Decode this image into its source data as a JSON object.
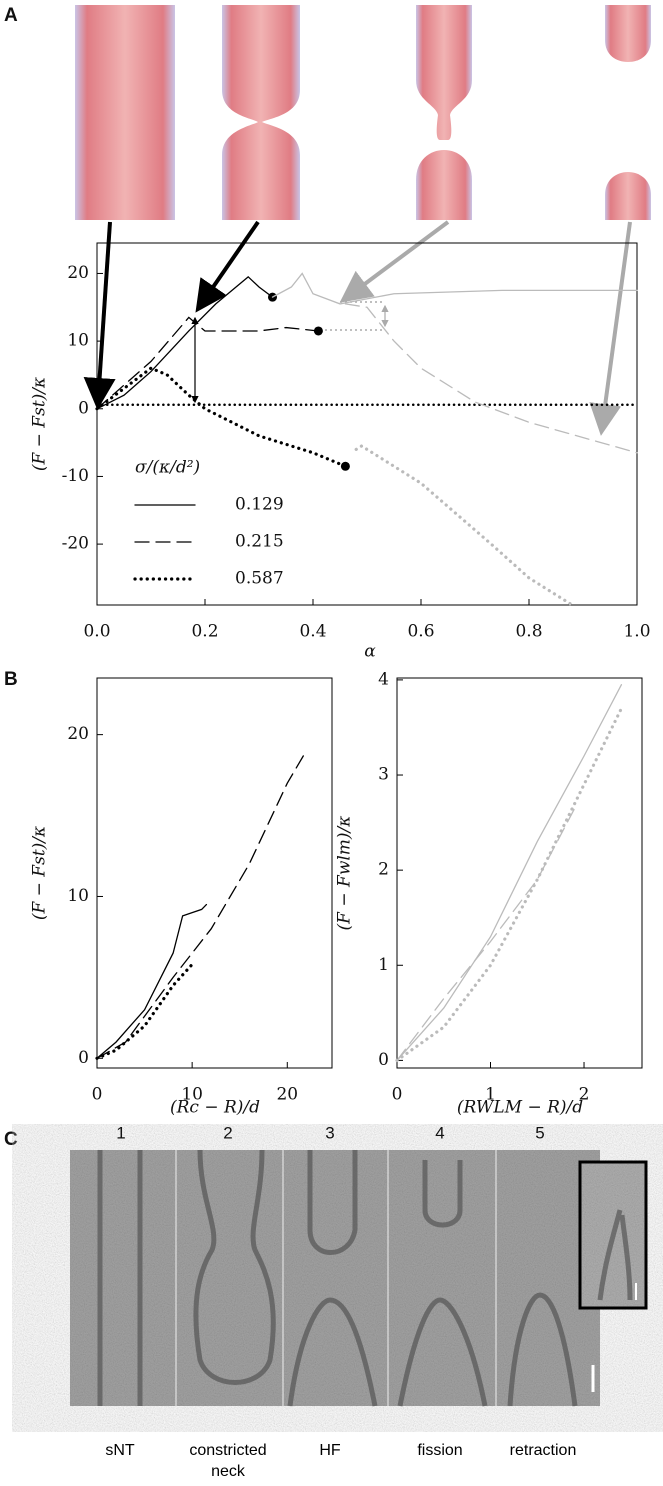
{
  "panels": {
    "a": "A",
    "b": "B",
    "c": "C"
  },
  "panel_c": {
    "numbers": [
      "1",
      "2",
      "3",
      "4",
      "5"
    ],
    "captions": [
      "sNT",
      "constricted neck",
      "HF",
      "fission",
      "retraction"
    ]
  },
  "chart_data": [
    {
      "type": "line",
      "xlabel": "α",
      "ylabel": "(F − Fst)/κ",
      "legend_title": "σ/(κ/d²)",
      "legend": "lower left",
      "xlim": [
        0,
        1
      ],
      "ylim": [
        -29,
        24.5
      ],
      "xticks": [
        {
          "value": 0,
          "label": "0.0"
        },
        0.2,
        0.4,
        0.6,
        0.8,
        {
          "value": 1,
          "label": "1.0"
        }
      ],
      "yticks": [
        -20,
        -10,
        0,
        10,
        20
      ],
      "reference_line": 0.6,
      "series": [
        {
          "name": "0.129",
          "color": "#000000",
          "style": "solid",
          "end_marker": true,
          "x": [
            0,
            0.05,
            0.1,
            0.17,
            0.22,
            0.28,
            0.3,
            0.325
          ],
          "values": [
            0,
            2,
            5.5,
            11.5,
            15.5,
            19.5,
            18,
            16.5
          ]
        },
        {
          "name": "0.215",
          "color": "#000000",
          "style": "dashed",
          "end_marker": true,
          "x": [
            0,
            0.05,
            0.1,
            0.17,
            0.2,
            0.25,
            0.3,
            0.35,
            0.41
          ],
          "values": [
            0,
            3.5,
            7,
            13.5,
            11.5,
            11.5,
            11.5,
            12,
            11.5
          ]
        },
        {
          "name": "0.587",
          "color": "#000000",
          "style": "dotted",
          "end_marker": true,
          "x": [
            0,
            0.05,
            0.1,
            0.13,
            0.17,
            0.2,
            0.3,
            0.4,
            0.46
          ],
          "values": [
            0,
            3,
            6,
            5,
            2,
            0,
            -4,
            -6.5,
            -8.5
          ]
        },
        {
          "color": "#bbbbbb",
          "style": "solid",
          "x": [
            0.325,
            0.36,
            0.38,
            0.4,
            0.45,
            0.55,
            0.75,
            1
          ],
          "values": [
            16.5,
            18,
            20,
            17,
            15.5,
            17,
            17.5,
            17.5
          ]
        },
        {
          "color": "#bbbbbb",
          "style": "dashed",
          "x": [
            0.46,
            0.5,
            0.55,
            0.6,
            0.7,
            0.8,
            1
          ],
          "values": [
            15.5,
            15,
            10,
            6,
            1,
            -2,
            -6.5
          ]
        },
        {
          "color": "#bbbbbb",
          "style": "dotted",
          "x": [
            0.48,
            0.49,
            0.6,
            0.73,
            0.8,
            0.88
          ],
          "values": [
            -6,
            -5.5,
            -11,
            -20,
            -25,
            -29
          ]
        }
      ]
    },
    {
      "type": "line",
      "xlabel": "(Rc − R)/d",
      "ylabel": "(F − Fst)/κ",
      "xlim": [
        0,
        24.7
      ],
      "ylim": [
        -0.6,
        23.5
      ],
      "xticks": [
        0,
        10,
        20
      ],
      "yticks": [
        0,
        10,
        20
      ],
      "series": [
        {
          "color": "#000000",
          "style": "solid",
          "x": [
            0,
            2,
            5,
            8,
            9,
            10,
            11,
            11.5
          ],
          "values": [
            0,
            1,
            3,
            6.5,
            8.8,
            9,
            9.2,
            9.5
          ]
        },
        {
          "color": "#000000",
          "style": "dashed",
          "x": [
            0,
            3,
            8,
            12,
            16,
            20,
            22
          ],
          "values": [
            0,
            1,
            5,
            8,
            12,
            17,
            19
          ]
        },
        {
          "color": "#000000",
          "style": "dotted",
          "x": [
            0,
            2,
            5,
            8,
            10
          ],
          "values": [
            0,
            0.5,
            2,
            4.5,
            5.8
          ]
        }
      ]
    },
    {
      "type": "line",
      "xlabel": "(RWLM − R)/d",
      "ylabel": "(F − Fwlm)/κ",
      "xlim": [
        0,
        2.62
      ],
      "ylim": [
        -0.08,
        4.02
      ],
      "xticks": [
        0,
        1,
        2
      ],
      "yticks": [
        0,
        1,
        2,
        3,
        4
      ],
      "series": [
        {
          "color": "#bbbbbb",
          "style": "solid",
          "x": [
            0,
            0.5,
            1,
            1.5,
            2,
            2.4
          ],
          "values": [
            0,
            0.55,
            1.3,
            2.3,
            3.2,
            3.95
          ]
        },
        {
          "color": "#bbbbbb",
          "style": "dashed",
          "x": [
            0,
            0.5,
            1,
            1.5,
            1.9
          ],
          "values": [
            0,
            0.65,
            1.25,
            1.9,
            2.65
          ]
        },
        {
          "color": "#bbbbbb",
          "style": "dotted",
          "x": [
            0,
            0.5,
            1,
            1.5,
            2,
            2.4
          ],
          "values": [
            0,
            0.35,
            1,
            1.9,
            2.9,
            3.7
          ]
        }
      ]
    }
  ]
}
